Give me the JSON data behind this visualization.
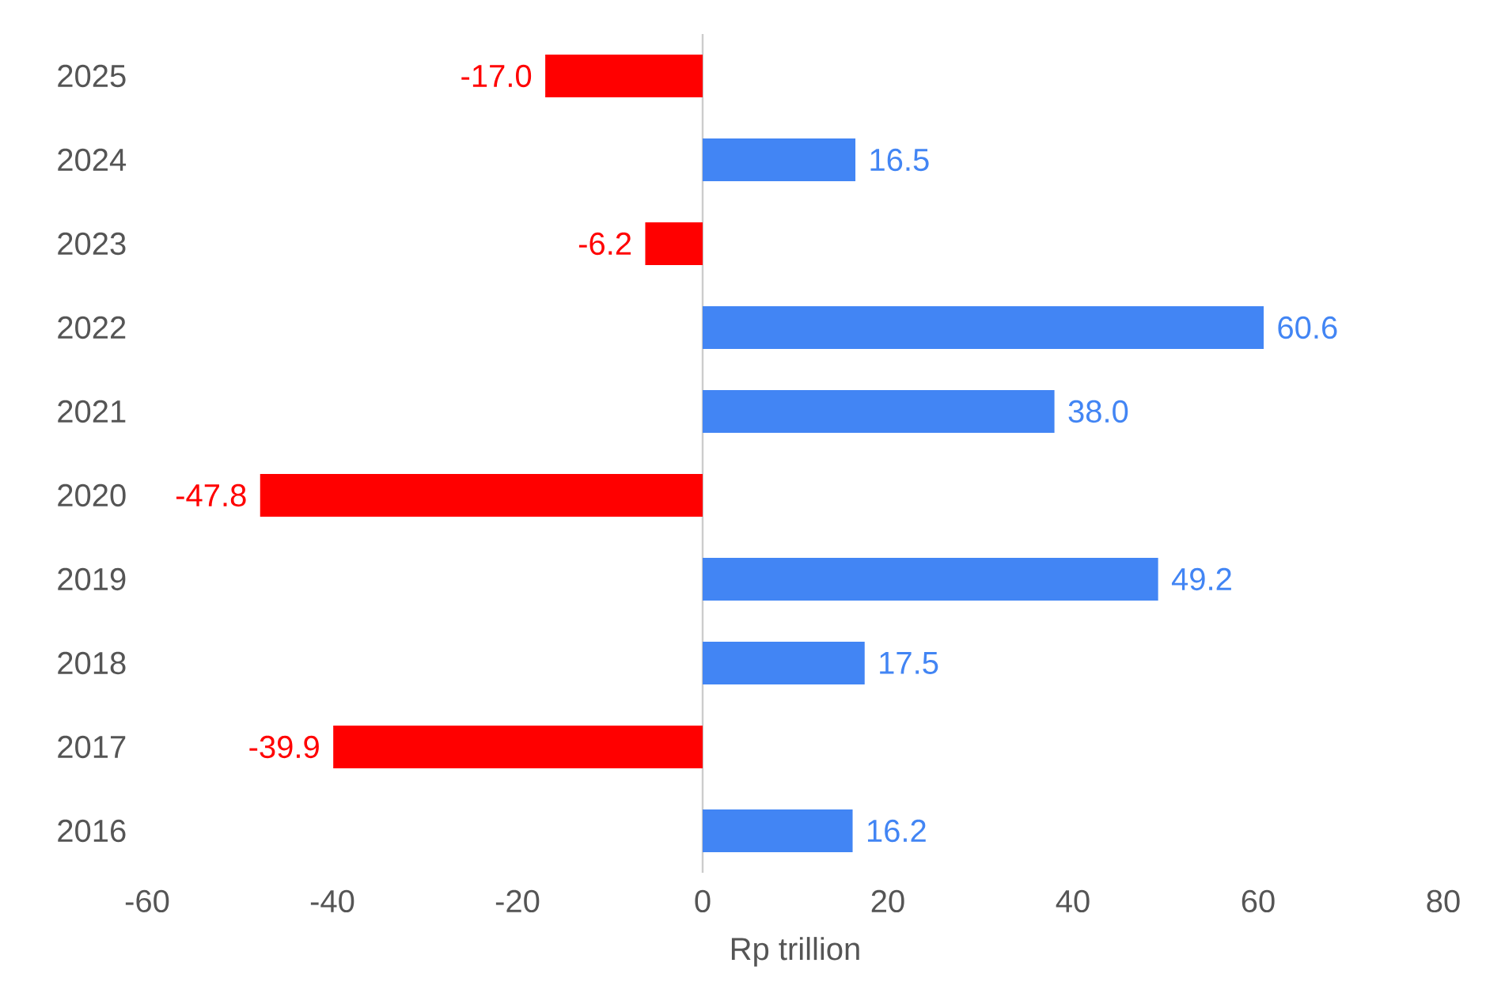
{
  "chart_data": {
    "type": "bar",
    "orientation": "horizontal",
    "xlabel": "Rp trillion",
    "categories": [
      "2025",
      "2024",
      "2023",
      "2022",
      "2021",
      "2020",
      "2019",
      "2018",
      "2017",
      "2016"
    ],
    "values": [
      -17.0,
      16.5,
      -6.2,
      60.6,
      38.0,
      -47.8,
      49.2,
      17.5,
      -39.9,
      16.2
    ],
    "value_labels": [
      "-17.0",
      "16.5",
      "-6.2",
      "60.6",
      "38.0",
      "-47.8",
      "49.2",
      "17.5",
      "-39.9",
      "16.2"
    ],
    "colors": [
      "#ff0000",
      "#4285f4",
      "#ff0000",
      "#4285f4",
      "#4285f4",
      "#ff0000",
      "#4285f4",
      "#4285f4",
      "#ff0000",
      "#4285f4"
    ],
    "xlim": [
      -60,
      80
    ],
    "xticks": [
      -60,
      -40,
      -20,
      0,
      20,
      40,
      60,
      80
    ]
  }
}
